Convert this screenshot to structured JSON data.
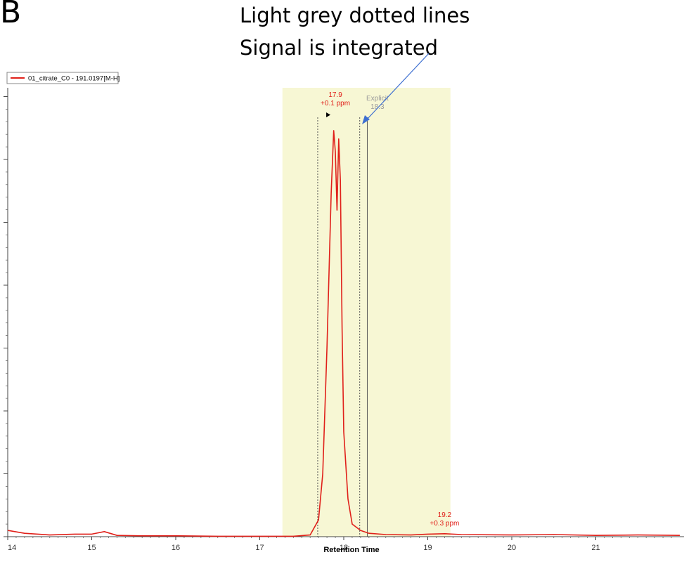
{
  "figure": {
    "panel_letter": "B",
    "callout": {
      "line1": "Light grey dotted lines",
      "line2": "Signal is integrated",
      "arrow_color": "#3d6fd1"
    }
  },
  "colors": {
    "trace": "#e0201a",
    "integration_band": "#f7f7d4",
    "boundary_lines": "#555555",
    "callout_arrow": "#3d6fd1"
  },
  "chart_data": {
    "type": "line",
    "xlabel": "Retention Time",
    "ylabel": "",
    "xlim": [
      14,
      22
    ],
    "x_ticks": [
      14,
      15,
      16,
      17,
      18,
      19,
      20,
      21
    ],
    "legend": {
      "entries": [
        "01_citrate_C0 - 191.0197[M-H]"
      ],
      "placement": "top-left"
    },
    "series": [
      {
        "name": "01_citrate_C0 - 191.0197[M-H]",
        "color": "#e0201a",
        "x": [
          14.0,
          14.2,
          14.5,
          14.8,
          15.0,
          15.15,
          15.3,
          15.6,
          16.0,
          16.5,
          17.0,
          17.4,
          17.6,
          17.7,
          17.75,
          17.8,
          17.85,
          17.88,
          17.9,
          17.92,
          17.94,
          17.96,
          17.98,
          18.0,
          18.05,
          18.1,
          18.2,
          18.3,
          18.5,
          18.8,
          19.0,
          19.2,
          19.4,
          20.0,
          20.5,
          21.0,
          21.5,
          22.0
        ],
        "y": [
          0.015,
          0.008,
          0.004,
          0.006,
          0.006,
          0.012,
          0.003,
          0.002,
          0.002,
          0.001,
          0.001,
          0.001,
          0.004,
          0.04,
          0.15,
          0.45,
          0.82,
          0.97,
          0.92,
          0.78,
          0.95,
          0.85,
          0.5,
          0.25,
          0.09,
          0.03,
          0.015,
          0.008,
          0.005,
          0.004,
          0.006,
          0.007,
          0.005,
          0.004,
          0.005,
          0.003,
          0.004,
          0.003
        ]
      }
    ],
    "shaded_region": {
      "x_start": 17.27,
      "x_end": 19.27
    },
    "boundary_lines": [
      17.69,
      18.19,
      18.28
    ],
    "annotations": [
      {
        "x": 17.9,
        "label": "17.9",
        "sublabel": "+0.1 ppm",
        "color": "#e0201a"
      },
      {
        "x": 18.3,
        "label": "Explicit",
        "sublabel": "18.3",
        "color": "#9a9a9a"
      },
      {
        "x": 19.2,
        "label": "19.2",
        "sublabel": "+0.3 ppm",
        "color": "#e0201a"
      }
    ]
  }
}
